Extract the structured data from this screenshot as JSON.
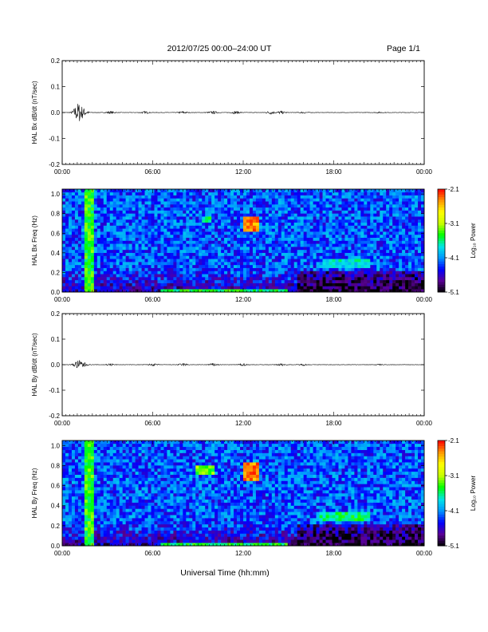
{
  "header": {
    "title": "2012/07/25  00:00–24:00 UT",
    "page": "Page 1/1"
  },
  "xlabel": "Universal Time (hh:mm)",
  "time_ticks": [
    "00:00",
    "06:00",
    "12:00",
    "18:00",
    "00:00"
  ],
  "colors": {
    "colormap": [
      "#000000",
      "#5a0096",
      "#0000ff",
      "#0096ff",
      "#00e6e6",
      "#00ff00",
      "#c8ff00",
      "#ffff00",
      "#ff9600",
      "#ff0000"
    ],
    "background_noise": "#1e6ee0",
    "trace": "#000000"
  },
  "chart_data": [
    {
      "type": "line",
      "ylabel": "HAL Bx dB/dt (nT/sec)",
      "xlim": [
        0,
        24
      ],
      "ylim": [
        -0.2,
        0.2
      ],
      "y_ticks": [
        "0.2",
        "0.1",
        "0.0",
        "-0.1",
        "-0.2"
      ],
      "y_values": [
        0.2,
        0.1,
        0.0,
        -0.1,
        -0.2
      ],
      "activity": [
        {
          "t": 1.05,
          "amp": 0.035
        },
        {
          "t": 1.4,
          "amp": 0.012
        },
        {
          "t": 3.2,
          "amp": 0.004
        },
        {
          "t": 5.5,
          "amp": 0.004
        },
        {
          "t": 8.0,
          "amp": 0.004
        },
        {
          "t": 10.0,
          "amp": 0.005
        },
        {
          "t": 11.5,
          "amp": 0.005
        },
        {
          "t": 13.8,
          "amp": 0.006
        },
        {
          "t": 14.5,
          "amp": 0.005
        },
        {
          "t": 16.0,
          "amp": 0.003
        },
        {
          "t": 21.0,
          "amp": 0.002
        }
      ]
    },
    {
      "type": "heatmap",
      "ylabel": "HAL Bx Freq (Hz)",
      "xlim": [
        0,
        24
      ],
      "ylim": [
        0,
        1.05
      ],
      "y_ticks": [
        "1.0",
        "0.8",
        "0.6",
        "0.4",
        "0.2",
        "0.0"
      ],
      "y_values": [
        1.0,
        0.8,
        0.6,
        0.4,
        0.2,
        0.0
      ],
      "colorbar_label": "Log₁₀ Power",
      "colorbar_ticks": [
        "-2.1",
        "-3.1",
        "-4.1",
        "-5.1"
      ],
      "colorbar_values": [
        -2.1,
        -3.1,
        -4.1,
        -5.1
      ],
      "colorbar_range": [
        -5.1,
        -2.1
      ],
      "features": [
        {
          "t0": 1.4,
          "t1": 2.2,
          "f0": 0.0,
          "f1": 1.05,
          "level": -3.4
        },
        {
          "t0": 12.0,
          "t1": 13.0,
          "f0": 0.62,
          "f1": 0.78,
          "level": -2.4
        },
        {
          "t0": 9.2,
          "t1": 9.8,
          "f0": 0.72,
          "f1": 0.78,
          "level": -3.6
        },
        {
          "t0": 17.2,
          "t1": 20.4,
          "f0": 0.24,
          "f1": 0.34,
          "level": -3.8
        },
        {
          "t0": 6.5,
          "t1": 15.0,
          "f0": 0.0,
          "f1": 0.03,
          "level": -3.5
        }
      ]
    },
    {
      "type": "line",
      "ylabel": "HAL By dB/dt (nT/sec)",
      "xlim": [
        0,
        24
      ],
      "ylim": [
        -0.2,
        0.2
      ],
      "y_ticks": [
        "0.2",
        "0.1",
        "0.0",
        "-0.1",
        "-0.2"
      ],
      "y_values": [
        0.2,
        0.1,
        0.0,
        -0.1,
        -0.2
      ],
      "activity": [
        {
          "t": 1.05,
          "amp": 0.015
        },
        {
          "t": 1.4,
          "amp": 0.008
        },
        {
          "t": 3.2,
          "amp": 0.004
        },
        {
          "t": 6.0,
          "amp": 0.004
        },
        {
          "t": 8.0,
          "amp": 0.005
        },
        {
          "t": 10.0,
          "amp": 0.005
        },
        {
          "t": 12.0,
          "amp": 0.004
        },
        {
          "t": 14.5,
          "amp": 0.004
        },
        {
          "t": 16.0,
          "amp": 0.003
        },
        {
          "t": 21.0,
          "amp": 0.002
        }
      ]
    },
    {
      "type": "heatmap",
      "ylabel": "HAL By Freq (Hz)",
      "xlim": [
        0,
        24
      ],
      "ylim": [
        0,
        1.05
      ],
      "y_ticks": [
        "1.0",
        "0.8",
        "0.6",
        "0.4",
        "0.2",
        "0.0"
      ],
      "y_values": [
        1.0,
        0.8,
        0.6,
        0.4,
        0.2,
        0.0
      ],
      "colorbar_label": "Log₁₀ Power",
      "colorbar_ticks": [
        "-2.1",
        "-3.1",
        "-4.1",
        "-5.1"
      ],
      "colorbar_values": [
        -2.1,
        -3.1,
        -4.1,
        -5.1
      ],
      "colorbar_range": [
        -5.1,
        -2.1
      ],
      "features": [
        {
          "t0": 1.4,
          "t1": 2.2,
          "f0": 0.0,
          "f1": 1.05,
          "level": -3.4
        },
        {
          "t0": 12.0,
          "t1": 13.0,
          "f0": 0.65,
          "f1": 0.82,
          "level": -2.4
        },
        {
          "t0": 8.8,
          "t1": 10.0,
          "f0": 0.7,
          "f1": 0.8,
          "level": -3.3
        },
        {
          "t0": 17.0,
          "t1": 20.5,
          "f0": 0.25,
          "f1": 0.34,
          "level": -3.6
        },
        {
          "t0": 6.5,
          "t1": 15.0,
          "f0": 0.0,
          "f1": 0.03,
          "level": -3.5
        }
      ]
    }
  ]
}
